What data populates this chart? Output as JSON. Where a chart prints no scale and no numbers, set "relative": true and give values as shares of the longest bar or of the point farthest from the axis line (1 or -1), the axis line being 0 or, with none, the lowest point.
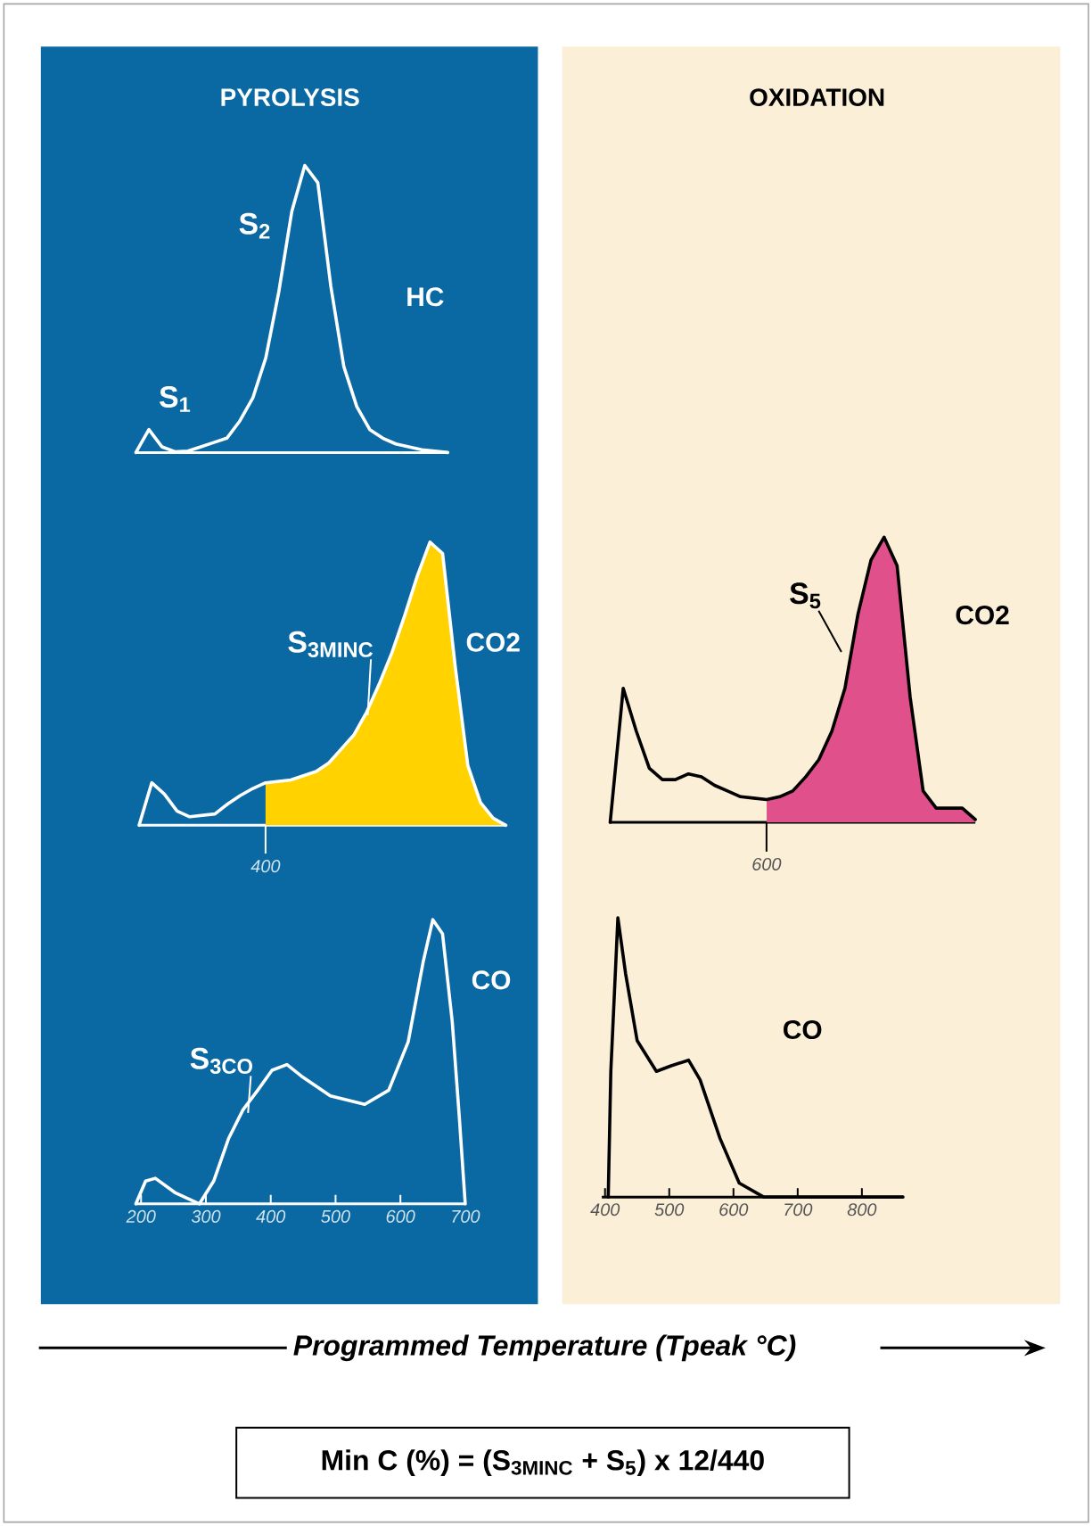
{
  "chart_data": [
    {
      "type": "line",
      "relative": true,
      "title": "PYROLYSIS",
      "categories": [
        null,
        null,
        null,
        null,
        null,
        null,
        null,
        null,
        null,
        null,
        null,
        null,
        null,
        null,
        null,
        null,
        null,
        null,
        null,
        null,
        null,
        null,
        null,
        null,
        null
      ],
      "series": [
        {
          "name": "HC",
          "color": "#ffffff",
          "values": [
            0,
            0.08,
            0.02,
            0.003,
            0.005,
            0.02,
            0.035,
            0.05,
            0.11,
            0.19,
            0.33,
            0.56,
            0.84,
            1,
            0.94,
            0.58,
            0.3,
            0.16,
            0.08,
            0.05,
            0.03,
            0.02,
            0.01,
            0.005,
            0
          ]
        }
      ],
      "annotations": [
        "S$_{1}$",
        "S$_{2}$"
      ]
    },
    {
      "type": "line",
      "relative": true,
      "categories": [
        null,
        null,
        null,
        null,
        null,
        null,
        null,
        null,
        null,
        null,
        null,
        null,
        null,
        null,
        null,
        null,
        null,
        null,
        null,
        null,
        null,
        null,
        null,
        null,
        null,
        null,
        null,
        null,
        null,
        null
      ],
      "series": [
        {
          "type": "area",
          "color": "#ffd200",
          "values": [
            null,
            null,
            null,
            null,
            null,
            null,
            null,
            null,
            null,
            null,
            0.15,
            0.155,
            0.16,
            0.175,
            0.19,
            0.22,
            0.27,
            0.32,
            0.4,
            0.5,
            0.61,
            0.74,
            0.88,
            1,
            0.96,
            0.56,
            0.21,
            0.08,
            0.025,
            0
          ]
        },
        {
          "name": "CO2",
          "color": "#ffffff",
          "values": [
            0,
            0.15,
            0.11,
            0.05,
            0.03,
            0.035,
            0.04,
            0.075,
            0.105,
            0.13,
            0.15,
            0.155,
            0.16,
            0.175,
            0.19,
            0.22,
            0.27,
            0.32,
            0.4,
            0.5,
            0.61,
            0.74,
            0.88,
            1,
            0.96,
            0.56,
            0.21,
            0.08,
            0.025,
            0
          ]
        }
      ],
      "annotations": [
        "S$_{3MINC}$",
        "400"
      ]
    },
    {
      "type": "line",
      "relative": true,
      "xlim": [
        192,
        700
      ],
      "xticks": [
        200,
        300,
        400,
        500,
        600,
        700
      ],
      "series": [
        {
          "name": "CO",
          "color": "#ffffff",
          "x": [
            192,
            207,
            222,
            252,
            290,
            312,
            335,
            357,
            380,
            402,
            425,
            447,
            492,
            545,
            582,
            612,
            635,
            650,
            665,
            680,
            691,
            700
          ],
          "values": [
            0,
            0.08,
            0.09,
            0.04,
            0,
            0.08,
            0.23,
            0.33,
            0.4,
            0.47,
            0.49,
            0.45,
            0.38,
            0.35,
            0.4,
            0.57,
            0.85,
            1,
            0.95,
            0.64,
            0.3,
            0
          ]
        }
      ],
      "annotations": [
        {
          "text": "S$_{3CO}$",
          "x": 365,
          "y": 0.32
        }
      ]
    },
    {
      "type": "line",
      "relative": true,
      "title": "OXIDATION",
      "categories": [
        null,
        null,
        null,
        null,
        null,
        null,
        null,
        null,
        null,
        null,
        null,
        null,
        null,
        null,
        null,
        null,
        null,
        null,
        null,
        null,
        null,
        null,
        null,
        null,
        null,
        null,
        null,
        null,
        null
      ],
      "series": [
        {
          "type": "area",
          "color": "#e0508a",
          "values": [
            null,
            null,
            null,
            null,
            null,
            null,
            null,
            null,
            null,
            null,
            null,
            null,
            0.08,
            0.09,
            0.11,
            0.16,
            0.22,
            0.32,
            0.47,
            0.73,
            0.92,
            1,
            0.9,
            0.44,
            0.11,
            0.05,
            0.05,
            0.05,
            0.01
          ]
        },
        {
          "name": "CO2",
          "color": "#000000",
          "values": [
            0,
            0.47,
            0.32,
            0.19,
            0.15,
            0.15,
            0.17,
            0.16,
            0.13,
            0.11,
            0.09,
            0.085,
            0.08,
            0.09,
            0.11,
            0.16,
            0.22,
            0.32,
            0.47,
            0.73,
            0.92,
            1,
            0.9,
            0.44,
            0.11,
            0.05,
            0.05,
            0.05,
            0.01
          ]
        }
      ],
      "annotations": [
        "S$_{5}$",
        "600"
      ]
    },
    {
      "type": "line",
      "relative": true,
      "xlim": [
        395,
        864
      ],
      "xticks": [
        400,
        500,
        600,
        700,
        800
      ],
      "xlabel": "Programmed Temperature (Tpeak °C)",
      "series": [
        {
          "name": "CO",
          "color": "#000000",
          "x": [
            405,
            409,
            420,
            432,
            450,
            480,
            503,
            530,
            548,
            579,
            609,
            647,
            864
          ],
          "values": [
            0,
            0.45,
            1,
            0.8,
            0.56,
            0.45,
            0.47,
            0.49,
            0.42,
            0.21,
            0.05,
            0,
            0
          ]
        }
      ],
      "annotations": [
        "Min C (%) = (S$_{3MINC}$ + S$_{5}$) x 12/440"
      ]
    }
  ]
}
